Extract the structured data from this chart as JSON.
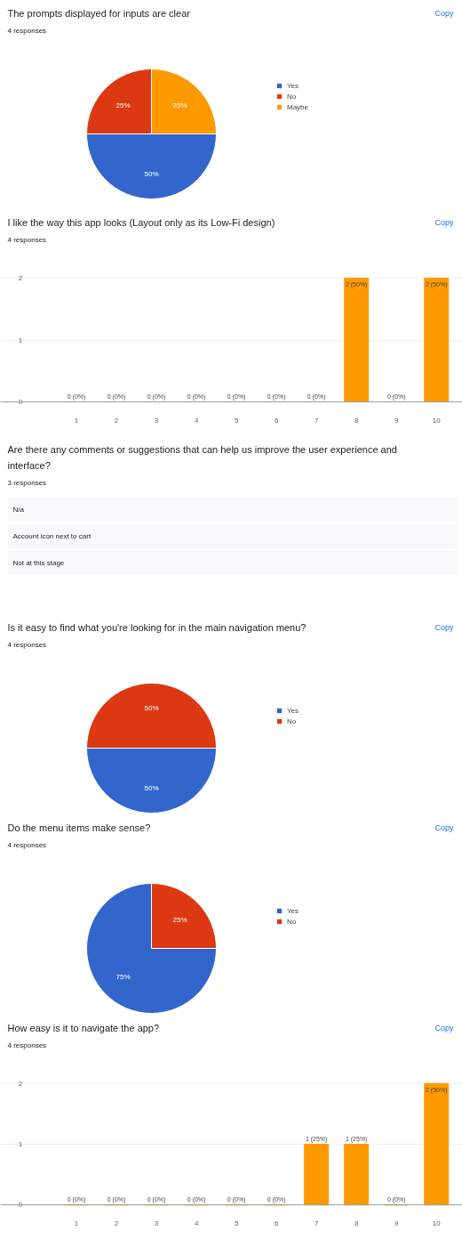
{
  "chart_data": [
    {
      "type": "pie",
      "title": "The prompts displayed for inputs are clear",
      "subtitle": "4 responses",
      "annotations": [
        "Copy"
      ],
      "categories": [
        "Yes",
        "No",
        "Maybe"
      ],
      "values": [
        50,
        25,
        25
      ],
      "colors": [
        "#3366cc",
        "#dc3912",
        "#ff9900"
      ],
      "value_labels": [
        "50%",
        "25%",
        "25%"
      ],
      "legend": "right"
    },
    {
      "type": "bar",
      "title": "I like the way this app looks (Layout only as its Low-Fi design)",
      "subtitle": "4 responses",
      "annotations": [
        "Copy"
      ],
      "categories": [
        "1",
        "2",
        "3",
        "4",
        "5",
        "6",
        "7",
        "8",
        "9",
        "10"
      ],
      "values": [
        0,
        0,
        0,
        0,
        0,
        0,
        0,
        2,
        0,
        2
      ],
      "color": "#ff9900",
      "value_labels": [
        "0 (0%)",
        "0 (0%)",
        "0 (0%)",
        "0 (0%)",
        "0 (0%)",
        "0 (0%)",
        "0 (0%)",
        "2 (50%)",
        "0 (0%)",
        "2 (50%)"
      ],
      "ylim": [
        0,
        2
      ],
      "yticks": [
        0,
        1,
        2
      ],
      "grid": "y"
    },
    {
      "type": "other",
      "title": "Are there any comments or suggestions that can help us improve the user experience and interface?",
      "subtitle": "3 responses",
      "annotations": [
        "N/a",
        "Account icon next to cart",
        "Not at this stage"
      ]
    },
    {
      "type": "pie",
      "title": "Is it easy to find what you're looking for in the main navigation menu?",
      "subtitle": "4 responses",
      "annotations": [
        "Copy"
      ],
      "categories": [
        "Yes",
        "No"
      ],
      "values": [
        50,
        50
      ],
      "colors": [
        "#3366cc",
        "#dc3912"
      ],
      "value_labels": [
        "50%",
        "50%"
      ],
      "legend": "right"
    },
    {
      "type": "pie",
      "title": "Do the menu items make sense?",
      "subtitle": "4 responses",
      "annotations": [
        "Copy"
      ],
      "categories": [
        "Yes",
        "No"
      ],
      "values": [
        75,
        25
      ],
      "colors": [
        "#3366cc",
        "#dc3912"
      ],
      "value_labels": [
        "75%",
        "25%"
      ],
      "legend": "right"
    },
    {
      "type": "bar",
      "title": "How easy is it to navigate the app?",
      "subtitle": "4 responses",
      "annotations": [
        "Copy"
      ],
      "categories": [
        "1",
        "2",
        "3",
        "4",
        "5",
        "6",
        "7",
        "8",
        "9",
        "10"
      ],
      "values": [
        0,
        0,
        0,
        0,
        0,
        0,
        1,
        1,
        0,
        2
      ],
      "color": "#ff9900",
      "value_labels": [
        "0 (0%)",
        "0 (0%)",
        "0 (0%)",
        "0 (0%)",
        "0 (0%)",
        "0 (0%)",
        "1 (25%)",
        "1 (25%)",
        "0 (0%)",
        "2 (50%)"
      ],
      "ylim": [
        0,
        2
      ],
      "yticks": [
        0,
        1,
        2
      ],
      "grid": "y"
    }
  ]
}
